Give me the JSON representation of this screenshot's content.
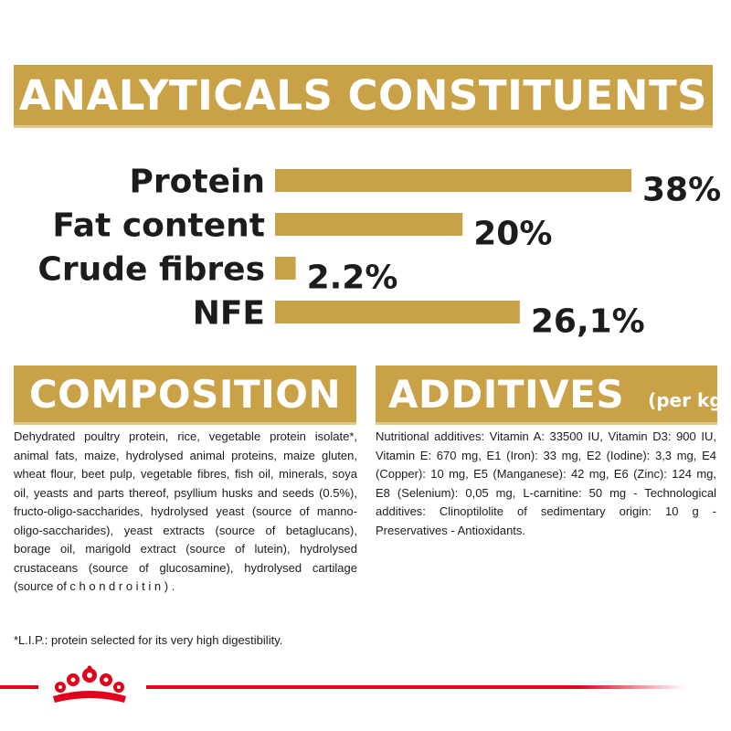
{
  "banner": {
    "title": "ANALYTICALS CONSTITUENTS"
  },
  "chart_data": {
    "type": "bar",
    "orientation": "horizontal",
    "title": "ANALYTICALS CONSTITUENTS",
    "categories": [
      "Protein",
      "Fat content",
      "Crude fibres",
      "NFE"
    ],
    "values": [
      38,
      20,
      2.2,
      26.1
    ],
    "value_labels": [
      "38%",
      "20%",
      "2.2%",
      "26,1%"
    ],
    "unit": "%",
    "grid": false,
    "bar_color": "#c9a247"
  },
  "composition": {
    "title": "COMPOSITION",
    "text": "Dehydrated poultry protein, rice, vegetable protein isolate*, animal fats, maize, hydrolysed animal proteins, maize gluten, wheat flour, beet pulp, vegetable fibres, fish oil, minerals, soya oil, yeasts and parts thereof, psyllium husks and seeds (0.5%), fructo-oligo-saccharides, hydrolysed yeast (source of manno-oligo-saccharides), yeast extracts (source of betaglucans), borage oil, marigold extract (source of lutein), hydrolysed crustaceans (source of glucosamine), hydrolysed cartilage (source of c h o n d r o i t i n ) .",
    "footnote": "*L.I.P.: protein selected for its very high digestibility."
  },
  "additives": {
    "title": "ADDITIVES",
    "subtitle": "(per kg)",
    "text": "Nutritional additives: Vitamin A: 33500 IU, Vitamin D3: 900 IU, Vitamin E: 670 mg, E1 (Iron): 33 mg, E2 (Iodine): 3,3 mg, E4 (Copper): 10 mg, E5 (Manganese): 42 mg, E6 (Zinc): 124 mg, E8 (Selenium): 0,05 mg, L-carnitine: 50 mg - Technological additives: Clinoptilolite of sedimentary origin: 10 g - Preservatives - Antioxidants."
  },
  "colors": {
    "gold": "#c9a247",
    "gold_light": "#e1c88c",
    "brand_red": "#e2001a",
    "text": "#1c1c1c"
  },
  "logo": {
    "icon": "crown-icon"
  }
}
